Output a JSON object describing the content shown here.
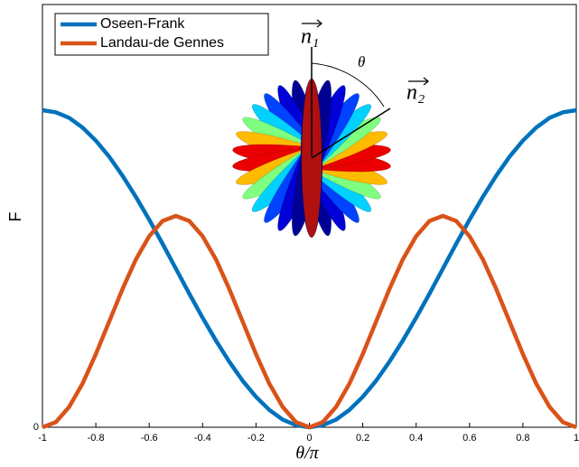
{
  "chart_data": {
    "type": "line",
    "x_label": "θ/π",
    "y_label": "F",
    "x": [
      -1,
      -0.95,
      -0.9,
      -0.85,
      -0.8,
      -0.75,
      -0.7,
      -0.65,
      -0.6,
      -0.55,
      -0.5,
      -0.45,
      -0.4,
      -0.35,
      -0.3,
      -0.25,
      -0.2,
      -0.15,
      -0.1,
      -0.05,
      0,
      0.05,
      0.1,
      0.15,
      0.2,
      0.25,
      0.3,
      0.35,
      0.4,
      0.45,
      0.5,
      0.55,
      0.6,
      0.65,
      0.7,
      0.75,
      0.8,
      0.85,
      0.9,
      0.95,
      1
    ],
    "series": [
      {
        "name": "Oseen-Frank",
        "color": "#0072bd",
        "values": [
          0.75,
          0.745,
          0.732,
          0.709,
          0.678,
          0.64,
          0.595,
          0.545,
          0.491,
          0.434,
          0.375,
          0.316,
          0.259,
          0.205,
          0.155,
          0.11,
          0.072,
          0.041,
          0.018,
          0.005,
          0,
          0.005,
          0.018,
          0.041,
          0.072,
          0.11,
          0.155,
          0.205,
          0.259,
          0.316,
          0.375,
          0.434,
          0.491,
          0.545,
          0.595,
          0.64,
          0.678,
          0.709,
          0.732,
          0.745,
          0.75
        ]
      },
      {
        "name": "Landau-de Gennes",
        "color": "#d95319",
        "values": [
          0,
          0.012,
          0.048,
          0.103,
          0.173,
          0.25,
          0.327,
          0.397,
          0.452,
          0.488,
          0.5,
          0.488,
          0.452,
          0.397,
          0.327,
          0.25,
          0.173,
          0.103,
          0.048,
          0.012,
          0,
          0.012,
          0.048,
          0.103,
          0.173,
          0.25,
          0.327,
          0.397,
          0.452,
          0.488,
          0.5,
          0.488,
          0.452,
          0.397,
          0.327,
          0.25,
          0.173,
          0.103,
          0.048,
          0.012,
          0
        ]
      }
    ],
    "xlim": [
      -1,
      1
    ],
    "ylim": [
      0,
      1
    ],
    "xticks": [
      -1,
      -0.8,
      -0.6,
      -0.4,
      -0.2,
      0,
      0.2,
      0.4,
      0.6,
      0.8,
      1
    ],
    "yticks": [
      0
    ],
    "legend": "upper-left",
    "annotations": [
      "n₁",
      "n₂",
      "θ"
    ]
  }
}
